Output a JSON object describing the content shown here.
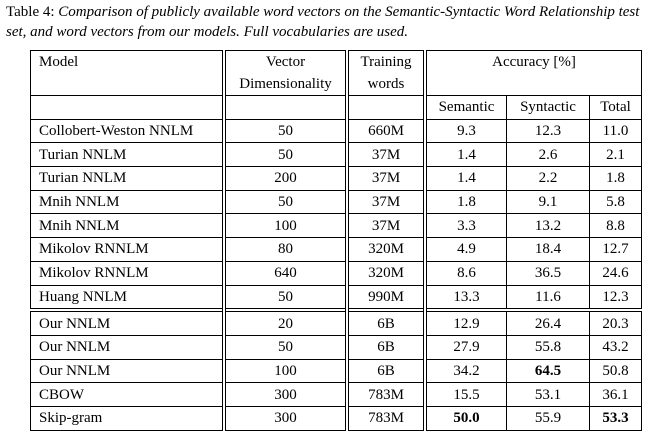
{
  "caption": {
    "label": "Table 4:",
    "text": "Comparison of publicly available word vectors on the Semantic-Syntactic Word Relationship test set, and word vectors from our models. Full vocabularies are used."
  },
  "table": {
    "header": {
      "model": "Model",
      "vector": [
        "Vector",
        "Dimensionality"
      ],
      "training": [
        "Training",
        "words"
      ],
      "accuracy": "Accuracy [%]",
      "subheaders": [
        "Semantic",
        "Syntactic",
        "Total"
      ]
    },
    "groups": [
      [
        [
          {
            "text": "Collobert-Weston NNLM"
          },
          {
            "text": "50"
          },
          {
            "text": "660M"
          },
          {
            "text": "9.3"
          },
          {
            "text": "12.3"
          },
          {
            "text": "11.0"
          }
        ],
        [
          {
            "text": "Turian NNLM"
          },
          {
            "text": "50"
          },
          {
            "text": "37M"
          },
          {
            "text": "1.4"
          },
          {
            "text": "2.6"
          },
          {
            "text": "2.1"
          }
        ],
        [
          {
            "text": "Turian NNLM"
          },
          {
            "text": "200"
          },
          {
            "text": "37M"
          },
          {
            "text": "1.4"
          },
          {
            "text": "2.2"
          },
          {
            "text": "1.8"
          }
        ],
        [
          {
            "text": "Mnih NNLM"
          },
          {
            "text": "50"
          },
          {
            "text": "37M"
          },
          {
            "text": "1.8"
          },
          {
            "text": "9.1"
          },
          {
            "text": "5.8"
          }
        ],
        [
          {
            "text": "Mnih NNLM"
          },
          {
            "text": "100"
          },
          {
            "text": "37M"
          },
          {
            "text": "3.3"
          },
          {
            "text": "13.2"
          },
          {
            "text": "8.8"
          }
        ],
        [
          {
            "text": "Mikolov RNNLM"
          },
          {
            "text": "80"
          },
          {
            "text": "320M"
          },
          {
            "text": "4.9"
          },
          {
            "text": "18.4"
          },
          {
            "text": "12.7"
          }
        ],
        [
          {
            "text": "Mikolov RNNLM"
          },
          {
            "text": "640"
          },
          {
            "text": "320M"
          },
          {
            "text": "8.6"
          },
          {
            "text": "36.5"
          },
          {
            "text": "24.6"
          }
        ],
        [
          {
            "text": "Huang NNLM"
          },
          {
            "text": "50"
          },
          {
            "text": "990M"
          },
          {
            "text": "13.3"
          },
          {
            "text": "11.6"
          },
          {
            "text": "12.3"
          }
        ]
      ],
      [
        [
          {
            "text": "Our NNLM"
          },
          {
            "text": "20"
          },
          {
            "text": "6B"
          },
          {
            "text": "12.9"
          },
          {
            "text": "26.4"
          },
          {
            "text": "20.3"
          }
        ],
        [
          {
            "text": "Our NNLM"
          },
          {
            "text": "50"
          },
          {
            "text": "6B"
          },
          {
            "text": "27.9"
          },
          {
            "text": "55.8"
          },
          {
            "text": "43.2"
          }
        ],
        [
          {
            "text": "Our NNLM"
          },
          {
            "text": "100"
          },
          {
            "text": "6B"
          },
          {
            "text": "34.2"
          },
          {
            "text": "64.5",
            "bold": true
          },
          {
            "text": "50.8"
          }
        ],
        [
          {
            "text": "CBOW"
          },
          {
            "text": "300"
          },
          {
            "text": "783M"
          },
          {
            "text": "15.5"
          },
          {
            "text": "53.1"
          },
          {
            "text": "36.1"
          }
        ],
        [
          {
            "text": "Skip-gram"
          },
          {
            "text": "300"
          },
          {
            "text": "783M"
          },
          {
            "text": "50.0",
            "bold": true
          },
          {
            "text": "55.9"
          },
          {
            "text": "53.3",
            "bold": true
          }
        ]
      ]
    ]
  }
}
